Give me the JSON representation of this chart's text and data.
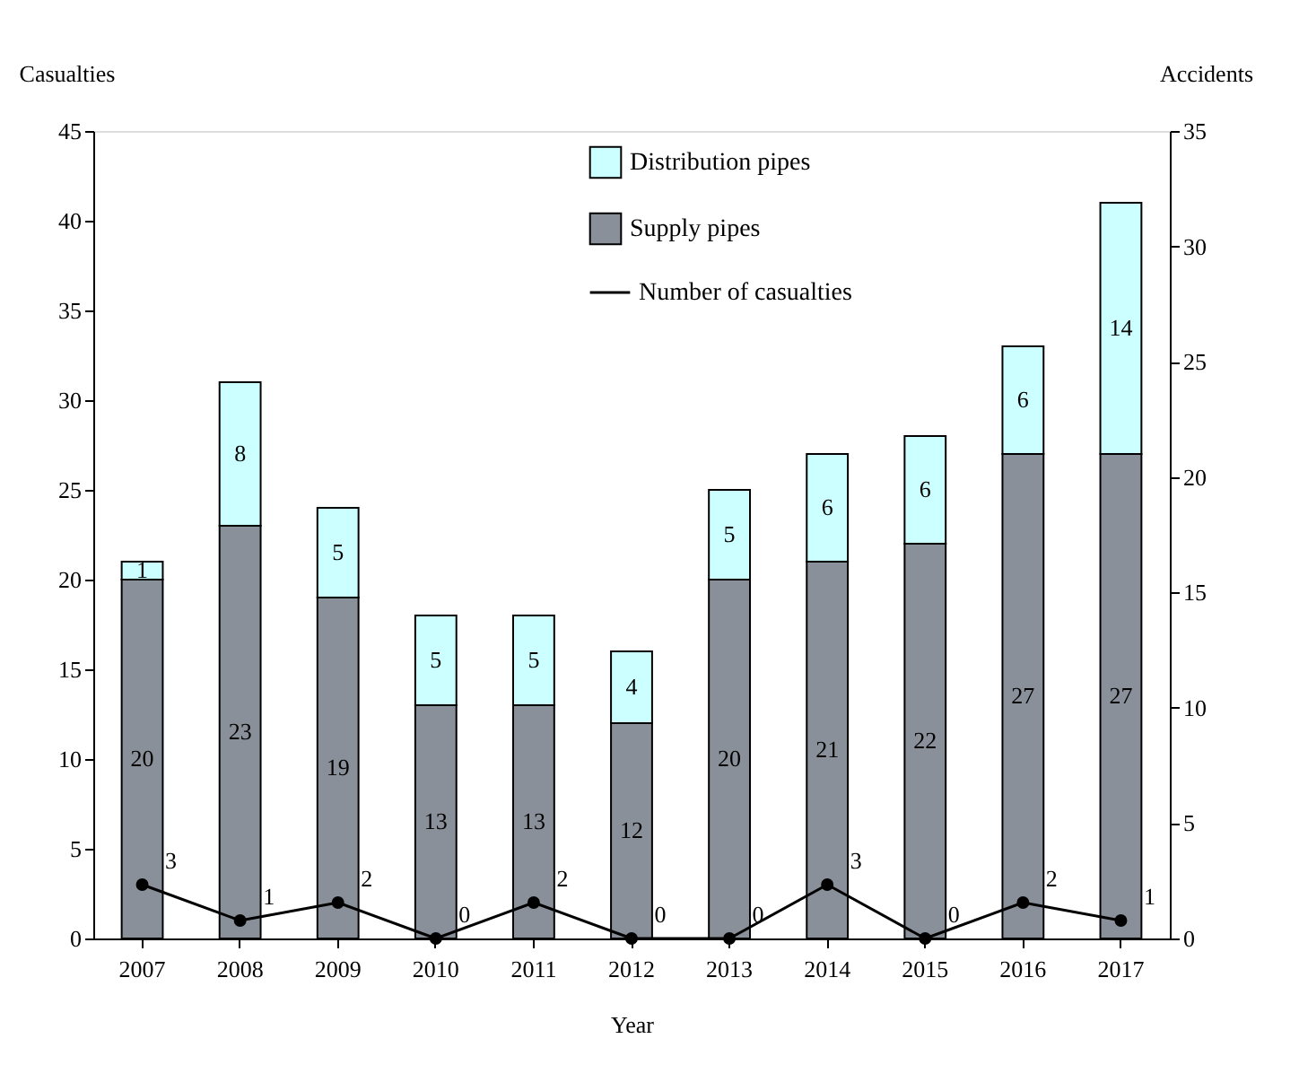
{
  "chart_data": {
    "type": "bar",
    "xlabel": "Year",
    "ylabel": "Casualties",
    "y2label": "Accidents",
    "categories": [
      "2007",
      "2008",
      "2009",
      "2010",
      "2011",
      "2012",
      "2013",
      "2014",
      "2015",
      "2016",
      "2017"
    ],
    "stacked": true,
    "series": [
      {
        "name": "Supply pipes",
        "color": "#8a9099",
        "values": [
          20,
          23,
          19,
          13,
          13,
          12,
          20,
          21,
          22,
          27,
          27
        ]
      },
      {
        "name": "Distribution pipes",
        "color": "#ccffff",
        "values": [
          1,
          8,
          5,
          5,
          5,
          4,
          5,
          6,
          6,
          6,
          14
        ]
      },
      {
        "name": "Number of casualties",
        "type": "line",
        "color": "#000000",
        "marker": "circle",
        "values": [
          3,
          1,
          2,
          0,
          2,
          0,
          0,
          3,
          0,
          2,
          1
        ]
      }
    ],
    "ylim": [
      0,
      45
    ],
    "yticks": [
      0,
      5,
      10,
      15,
      20,
      25,
      30,
      35,
      40,
      45
    ],
    "y2lim": [
      0,
      35
    ],
    "y2ticks": [
      0,
      5,
      10,
      15,
      20,
      25,
      30,
      35
    ],
    "data_labels": true,
    "grid": false,
    "legend": "top"
  }
}
